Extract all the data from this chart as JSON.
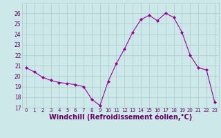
{
  "x": [
    0,
    1,
    2,
    3,
    4,
    5,
    6,
    7,
    8,
    9,
    10,
    11,
    12,
    13,
    14,
    15,
    16,
    17,
    18,
    19,
    20,
    21,
    22,
    23
  ],
  "y": [
    20.8,
    20.4,
    19.9,
    19.6,
    19.4,
    19.3,
    19.2,
    19.0,
    17.8,
    17.2,
    19.5,
    21.2,
    22.6,
    24.2,
    25.4,
    25.8,
    25.3,
    26.0,
    25.6,
    24.2,
    22.0,
    20.8,
    20.6,
    17.5
  ],
  "line_color": "#990099",
  "marker": "D",
  "marker_size": 2,
  "bg_color": "#cce8e8",
  "grid_color": "#aacccc",
  "xlabel": "Windchill (Refroidissement éolien,°C)",
  "xlabel_fontsize": 7,
  "xlabel_color": "#660066",
  "tick_color": "#660066",
  "ylim": [
    17,
    27
  ],
  "xlim": [
    -0.5,
    23.5
  ],
  "yticks": [
    17,
    18,
    19,
    20,
    21,
    22,
    23,
    24,
    25,
    26
  ],
  "xticks": [
    0,
    1,
    2,
    3,
    4,
    5,
    6,
    7,
    8,
    9,
    10,
    11,
    12,
    13,
    14,
    15,
    16,
    17,
    18,
    19,
    20,
    21,
    22,
    23
  ]
}
